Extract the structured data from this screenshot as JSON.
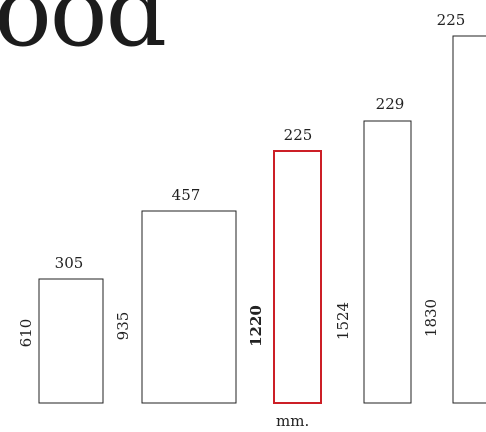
{
  "title": "ood",
  "unit_label": "mm.",
  "colors": {
    "normal": "#222222",
    "highlight": "#cc1f26"
  },
  "panels": [
    {
      "width": "305",
      "height": "610",
      "highlight": false
    },
    {
      "width": "457",
      "height": "935",
      "highlight": false
    },
    {
      "width": "225",
      "height": "1220",
      "highlight": true
    },
    {
      "width": "229",
      "height": "1524",
      "highlight": false
    },
    {
      "width": "225",
      "height": "1830",
      "highlight": false
    }
  ]
}
